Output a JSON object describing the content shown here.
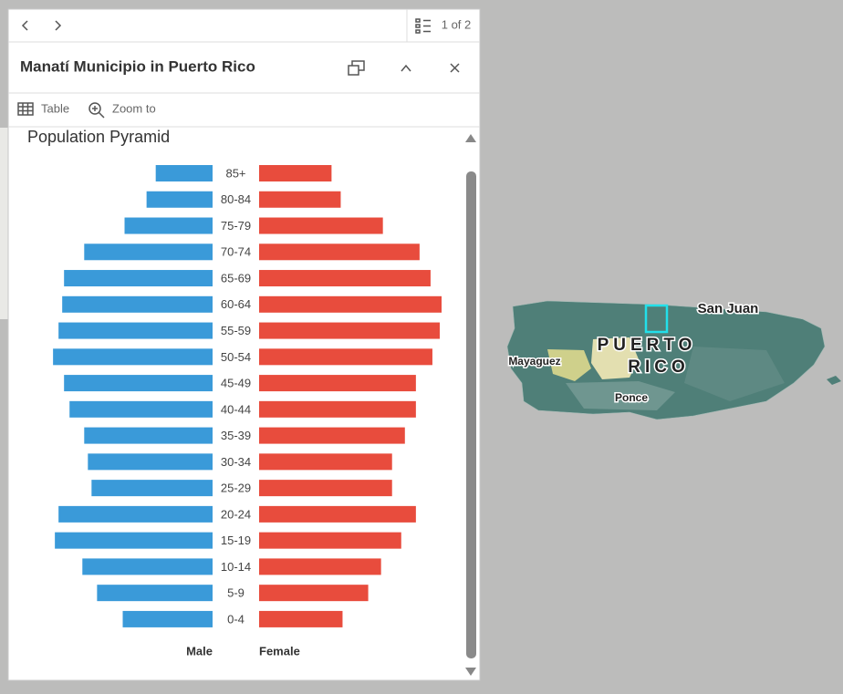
{
  "panel": {
    "pager": "1 of 2",
    "title": "Manatí Municipio in Puerto Rico",
    "actions": [
      "Table",
      "Zoom to"
    ]
  },
  "chart_data": {
    "type": "pyramid",
    "title": "Population Pyramid",
    "categories": [
      "85+",
      "80-84",
      "75-79",
      "70-74",
      "65-69",
      "60-64",
      "55-59",
      "50-54",
      "45-49",
      "40-44",
      "35-39",
      "30-34",
      "25-29",
      "20-24",
      "15-19",
      "10-14",
      "5-9",
      "0-4"
    ],
    "series": [
      {
        "name": "Male",
        "color": "#3a9ad9",
        "values": [
          62,
          72,
          96,
          140,
          162,
          164,
          168,
          174,
          162,
          156,
          140,
          136,
          132,
          168,
          172,
          142,
          126,
          98
        ]
      },
      {
        "name": "Female",
        "color": "#e84c3d",
        "values": [
          79,
          89,
          135,
          175,
          187,
          199,
          197,
          189,
          171,
          171,
          159,
          145,
          145,
          171,
          155,
          133,
          119,
          91
        ]
      }
    ]
  },
  "map": {
    "labels": [
      "San Juan",
      "PUERTO",
      "RICO",
      "Mayaguez",
      "Ponce"
    ]
  }
}
